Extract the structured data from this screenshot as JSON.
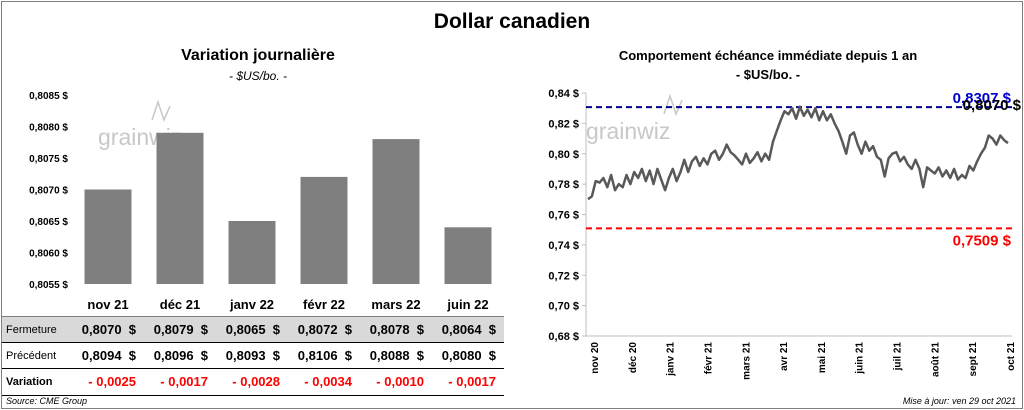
{
  "main_title": "Dollar canadien",
  "watermark": "grainwiz",
  "left_chart": {
    "title": "Variation  journalière",
    "unit": "- $US/bo. -"
  },
  "right_chart": {
    "title": "Comportement échéance immédiate depuis 1 an",
    "unit": "- $US/bo. -"
  },
  "chart_data": [
    {
      "type": "bar",
      "categories": [
        "nov 21",
        "déc 21",
        "janv 22",
        "févr 22",
        "mars 22",
        "juin 22"
      ],
      "values": [
        0.807,
        0.8079,
        0.8065,
        0.8072,
        0.8078,
        0.8064
      ],
      "ylim": [
        0.8055,
        0.8085
      ],
      "yticks": [
        "0,8055 $",
        "0,8060 $",
        "0,8065 $",
        "0,8070 $",
        "0,8075 $",
        "0,8080 $",
        "0,8085 $"
      ],
      "grid": false,
      "bar_color": "#7f7f7f"
    },
    {
      "type": "line",
      "x_labels": [
        "nov 20",
        "déc 20",
        "janv 21",
        "févr 21",
        "mars 21",
        "avr 21",
        "mai 21",
        "juin 21",
        "juil 21",
        "août 21",
        "sept 21",
        "oct 21"
      ],
      "ylim": [
        0.68,
        0.84
      ],
      "yticks": [
        "0,68 $",
        "0,70 $",
        "0,72 $",
        "0,74 $",
        "0,76 $",
        "0,78 $",
        "0,80 $",
        "0,82 $",
        "0,84 $"
      ],
      "series": [
        {
          "line_color": "#595959",
          "values": [
            0.77,
            0.772,
            0.782,
            0.781,
            0.784,
            0.778,
            0.786,
            0.776,
            0.78,
            0.778,
            0.786,
            0.78,
            0.788,
            0.784,
            0.79,
            0.782,
            0.789,
            0.78,
            0.79,
            0.783,
            0.776,
            0.784,
            0.79,
            0.782,
            0.788,
            0.796,
            0.788,
            0.795,
            0.798,
            0.792,
            0.797,
            0.793,
            0.8,
            0.802,
            0.796,
            0.8,
            0.806,
            0.801,
            0.799,
            0.796,
            0.793,
            0.8,
            0.794,
            0.797,
            0.801,
            0.795,
            0.8,
            0.796,
            0.808,
            0.815,
            0.822,
            0.828,
            0.826,
            0.83,
            0.823,
            0.831,
            0.825,
            0.829,
            0.824,
            0.83,
            0.822,
            0.828,
            0.822,
            0.826,
            0.82,
            0.815,
            0.808,
            0.8,
            0.812,
            0.814,
            0.806,
            0.8,
            0.808,
            0.802,
            0.805,
            0.798,
            0.796,
            0.785,
            0.797,
            0.8,
            0.801,
            0.795,
            0.798,
            0.793,
            0.79,
            0.796,
            0.79,
            0.778,
            0.791,
            0.789,
            0.787,
            0.791,
            0.785,
            0.789,
            0.784,
            0.79,
            0.783,
            0.786,
            0.784,
            0.792,
            0.789,
            0.795,
            0.8,
            0.804,
            0.812,
            0.81,
            0.806,
            0.812,
            0.809,
            0.807
          ]
        }
      ],
      "reference_lines": [
        {
          "value": 0.8307,
          "label": "0,8307 $",
          "color": "#00008b",
          "style": "dashed"
        },
        {
          "value": 0.7509,
          "label": "0,7509 $",
          "color": "#ff0000",
          "style": "dashed"
        }
      ],
      "last_value_label": "0,8070 $"
    }
  ],
  "table": {
    "rows": [
      {
        "label": "Fermeture",
        "values": [
          "0,8070  $",
          "0,8079  $",
          "0,8065  $",
          "0,8072  $",
          "0,8078  $",
          "0,8064  $"
        ],
        "bg": "#d9d9d9",
        "color": "#000000"
      },
      {
        "label": "Précédent",
        "values": [
          "0,8094  $",
          "0,8096  $",
          "0,8093  $",
          "0,8106  $",
          "0,8088  $",
          "0,8080  $"
        ],
        "bg": "#ffffff",
        "color": "#000000"
      },
      {
        "label": "Variation",
        "values": [
          "- 0,0025",
          "- 0,0017",
          "- 0,0028",
          "- 0,0034",
          "- 0,0010",
          "- 0,0017"
        ],
        "bg": "#ffffff",
        "color": "#ff0000"
      }
    ]
  },
  "footer": {
    "source": "Source: CME Group",
    "updated": "Mise à jour: ven 29 oct 2021"
  }
}
